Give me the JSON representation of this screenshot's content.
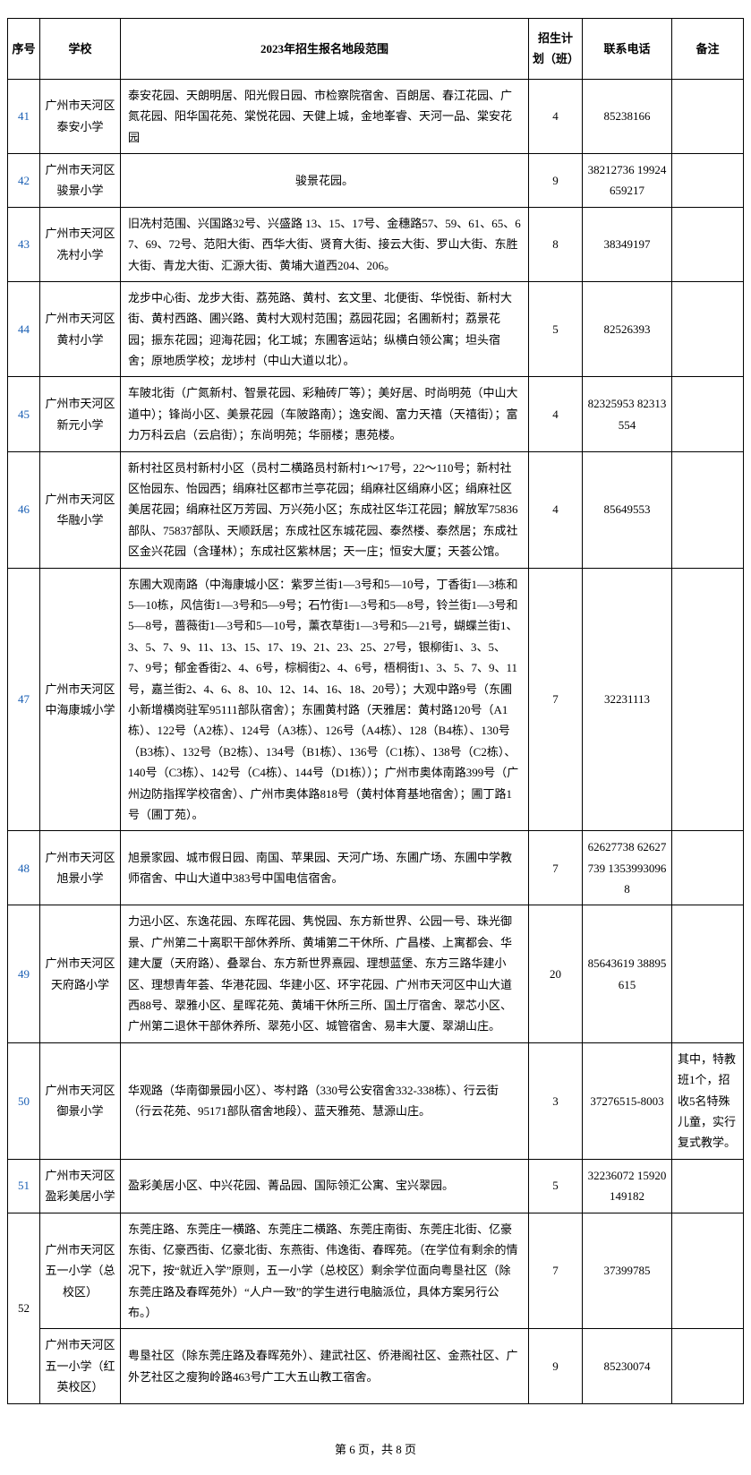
{
  "table": {
    "headers": {
      "seq": "序号",
      "school": "学校",
      "scope": "2023年招生报名地段范围",
      "plan": "招生计划（班）",
      "phone": "联系电话",
      "note": "备注"
    },
    "rows": [
      {
        "seq": "41",
        "school": "广州市天河区泰安小学",
        "scope": "泰安花园、天朗明居、阳光假日园、市检察院宿舍、百朗居、春江花园、广氮花园、阳华国花苑、棠悦花园、天健上城，金地峯睿、天河一品、棠安花园",
        "plan": "4",
        "phone": "85238166",
        "note": ""
      },
      {
        "seq": "42",
        "school": "广州市天河区骏景小学",
        "scope": "骏景花园。",
        "scope_center": true,
        "plan": "9",
        "phone": "38212736 19924659217",
        "note": ""
      },
      {
        "seq": "43",
        "school": "广州市天河区冼村小学",
        "scope": "旧冼村范围、兴国路32号、兴盛路 13、15、17号、金穗路57、59、61、65、67、69、72号、范阳大街、西华大街、贤育大街、接云大街、罗山大街、东胜大街、青龙大街、汇源大街、黄埔大道西204、206。",
        "plan": "8",
        "phone": "38349197",
        "note": ""
      },
      {
        "seq": "44",
        "school": "广州市天河区黄村小学",
        "scope": "龙步中心街、龙步大街、荔苑路、黄村、玄文里、北便街、华悦街、新村大街、黄村西路、圃兴路、黄村大观村范围；荔园花园；名圃新村；荔景花园；振东花园；迎海花园；化工城；东圃客运站；纵横白领公寓；坦头宿舍；原地质学校；龙埗村（中山大道以北）。",
        "plan": "5",
        "phone": "82526393",
        "note": ""
      },
      {
        "seq": "45",
        "school": "广州市天河区新元小学",
        "scope": "车陂北街（广氮新村、智景花园、彩釉砖厂等）；美好居、时尚明苑（中山大道中）；锋尚小区、美景花园（车陂路南）；逸安阁、富力天禧（天禧街）；富力万科云启（云启街）；东尚明苑；华丽楼；惠苑楼。",
        "plan": "4",
        "phone": "82325953 82313554",
        "note": ""
      },
      {
        "seq": "46",
        "school": "广州市天河区华融小学",
        "scope": "新村社区员村新村小区（员村二横路员村新村1～17号，22～110号；新村社区怡园东、怡园西；绢麻社区都市兰亭花园；绢麻社区绢麻小区；绢麻社区美居花园；绢麻社区万芳园、万兴苑小区；东成社区华江花园；解放军75836部队、75837部队、天顺跃居；东成社区东城花园、泰然楼、泰然居；东成社区金兴花园（含瑾林）；东成社区紫林居；天一庄；恒安大厦；天荟公馆。",
        "plan": "4",
        "phone": "85649553",
        "note": ""
      },
      {
        "seq": "47",
        "school": "广州市天河区中海康城小学",
        "scope": "东圃大观南路（中海康城小区：紫罗兰街1—3号和5—10号，丁香街1—3栋和5—10栋，风信街1—3号和5—9号；石竹街1—3号和5—8号，铃兰街1—3号和5—8号，蔷薇街1—3号和5—10号，薰衣草街1—3号和5—21号，蝴蝶兰街1、3、5、7、9、11、13、15、17、19、21、23、25、27号，银柳街1、3、5、7、9号；郁金香街2、4、6号，棕榈街2、4、6号，梧桐街1、3、5、7、9、11号，嘉兰街2、4、6、8、10、12、14、16、18、20号）；大观中路9号（东圃小新增横岗驻军95111部队宿舍）；东圃黄村路（天雅居：黄村路120号（A1栋）、122号（A2栋）、124号（A3栋）、126号（A4栋）、128（B4栋）、130号（B3栋）、132号（B2栋）、134号（B1栋）、136号（C1栋）、138号（C2栋）、140号（C3栋）、142号（C4栋）、144号（D1栋））；广州市奥体南路399号（广州边防指挥学校宿舍）、广州市奥体路818号（黄村体育基地宿舍）；圃丁路1号（圃丁苑）。",
        "plan": "7",
        "phone": "32231113",
        "note": ""
      },
      {
        "seq": "48",
        "school": "广州市天河区旭景小学",
        "scope": "旭景家园、城市假日园、南国、苹果园、天河广场、东圃广场、东圃中学教师宿舍、中山大道中383号中国电信宿舍。",
        "plan": "7",
        "phone": "62627738 62627739 13539930968",
        "note": ""
      },
      {
        "seq": "49",
        "school": "广州市天河区天府路小学",
        "scope": "力迅小区、东逸花园、东晖花园、隽悦园、东方新世界、公园一号、珠光御景、广州第二十离职干部休养所、黄埔第二干休所、广昌楼、上寓都会、华建大厦（天府路）、叠翠台、东方新世界熹园、理想蓝堡、东方三路华建小区、理想青年荟、华港花园、华建小区、环宇花园、广州市天河区中山大道西88号、翠雅小区、星晖花苑、黄埔干休所三所、国土厅宿舍、翠芯小区、广州第二退休干部休养所、翠苑小区、城管宿舍、易丰大厦、翠湖山庄。",
        "plan": "20",
        "phone": "85643619 38895615",
        "note": ""
      },
      {
        "seq": "50",
        "school": "广州市天河区御景小学",
        "scope": "华观路（华南御景园小区）、岑村路（330号公安宿舍332-338栋）、行云街（行云花苑、95171部队宿舍地段）、蓝天雅苑、慧源山庄。",
        "plan": "3",
        "phone": "37276515-8003",
        "note": "其中，特教班1个，招收5名特殊儿童，实行复式教学。"
      },
      {
        "seq": "51",
        "school": "广州市天河区盈彩美居小学",
        "scope": "盈彩美居小区、中兴花园、菁品园、国际领汇公寓、宝兴翠园。",
        "plan": "5",
        "phone": "32236072 15920149182",
        "note": ""
      },
      {
        "seq_group": "52",
        "subrows": [
          {
            "school": "广州市天河区五一小学（总校区）",
            "scope": "东莞庄路、东莞庄一横路、东莞庄二横路、东莞庄南街、东莞庄北街、亿豪东街、亿豪西街、亿豪北街、东燕街、伟逸街、春晖苑。（在学位有剩余的情况下，按“就近入学”原则，五一小学（总校区）剩余学位面向粤垦社区（除东莞庄路及春晖苑外）“人户一致”的学生进行电脑派位，具体方案另行公布。）",
            "plan": "7",
            "phone": "37399785",
            "note": ""
          },
          {
            "school": "广州市天河区五一小学（红英校区）",
            "scope": "粤垦社区（除东莞庄路及春晖苑外）、建武社区、侨港阁社区、金燕社区、广外艺社区之瘦狗岭路463号广工大五山教工宿舍。",
            "plan": "9",
            "phone": "85230074",
            "note": ""
          }
        ]
      }
    ]
  },
  "footer": "第 6 页，共 8 页"
}
